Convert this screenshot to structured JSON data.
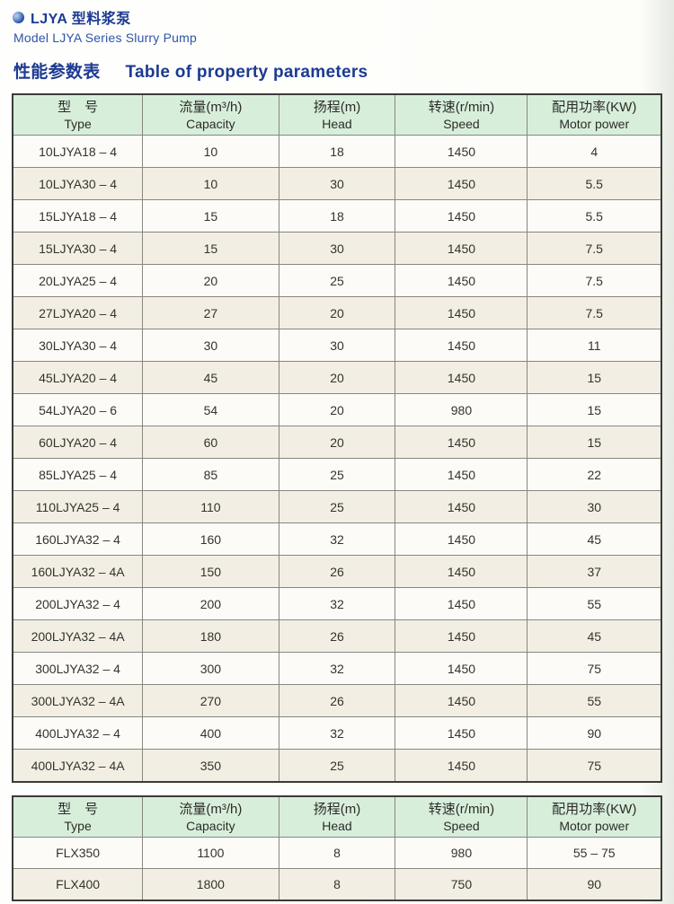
{
  "header": {
    "title_zh": "LJYA 型料浆泵",
    "subtitle_en": "Model LJYA Series Slurry Pump"
  },
  "section": {
    "title_zh": "性能参数表",
    "title_en": "Table of property parameters"
  },
  "colors": {
    "title_blue": "#1c3a92",
    "subtitle_blue": "#2d55a8",
    "table_header_green": "#d7eedb",
    "row_cream": "#f3eee3",
    "row_white": "#fcfbf7",
    "outer_border": "#3b3b37"
  },
  "table1": {
    "headers": [
      {
        "zh": "型　号",
        "en": "Type"
      },
      {
        "zh": "流量(m³/h)",
        "en": "Capacity"
      },
      {
        "zh": "扬程(m)",
        "en": "Head"
      },
      {
        "zh": "转速(r/min)",
        "en": "Speed"
      },
      {
        "zh": "配用功率(KW)",
        "en": "Motor power"
      }
    ],
    "rows": [
      [
        "10LJYA18 – 4",
        "10",
        "18",
        "1450",
        "4"
      ],
      [
        "10LJYA30 – 4",
        "10",
        "30",
        "1450",
        "5.5"
      ],
      [
        "15LJYA18 – 4",
        "15",
        "18",
        "1450",
        "5.5"
      ],
      [
        "15LJYA30 – 4",
        "15",
        "30",
        "1450",
        "7.5"
      ],
      [
        "20LJYA25 – 4",
        "20",
        "25",
        "1450",
        "7.5"
      ],
      [
        "27LJYA20 – 4",
        "27",
        "20",
        "1450",
        "7.5"
      ],
      [
        "30LJYA30 – 4",
        "30",
        "30",
        "1450",
        "11"
      ],
      [
        "45LJYA20 – 4",
        "45",
        "20",
        "1450",
        "15"
      ],
      [
        "54LJYA20 – 6",
        "54",
        "20",
        "980",
        "15"
      ],
      [
        "60LJYA20 – 4",
        "60",
        "20",
        "1450",
        "15"
      ],
      [
        "85LJYA25 – 4",
        "85",
        "25",
        "1450",
        "22"
      ],
      [
        "110LJYA25 – 4",
        "110",
        "25",
        "1450",
        "30"
      ],
      [
        "160LJYA32 – 4",
        "160",
        "32",
        "1450",
        "45"
      ],
      [
        "160LJYA32 – 4A",
        "150",
        "26",
        "1450",
        "37"
      ],
      [
        "200LJYA32 – 4",
        "200",
        "32",
        "1450",
        "55"
      ],
      [
        "200LJYA32 – 4A",
        "180",
        "26",
        "1450",
        "45"
      ],
      [
        "300LJYA32 – 4",
        "300",
        "32",
        "1450",
        "75"
      ],
      [
        "300LJYA32 – 4A",
        "270",
        "26",
        "1450",
        "55"
      ],
      [
        "400LJYA32 – 4",
        "400",
        "32",
        "1450",
        "90"
      ],
      [
        "400LJYA32 – 4A",
        "350",
        "25",
        "1450",
        "75"
      ]
    ]
  },
  "table2": {
    "headers": [
      {
        "zh": "型　号",
        "en": "Type"
      },
      {
        "zh": "流量(m³/h)",
        "en": "Capacity"
      },
      {
        "zh": "扬程(m)",
        "en": "Head"
      },
      {
        "zh": "转速(r/min)",
        "en": "Speed"
      },
      {
        "zh": "配用功率(KW)",
        "en": "Motor power"
      }
    ],
    "rows": [
      [
        "FLX350",
        "1100",
        "8",
        "980",
        "55 – 75"
      ],
      [
        "FLX400",
        "1800",
        "8",
        "750",
        "90"
      ]
    ]
  }
}
